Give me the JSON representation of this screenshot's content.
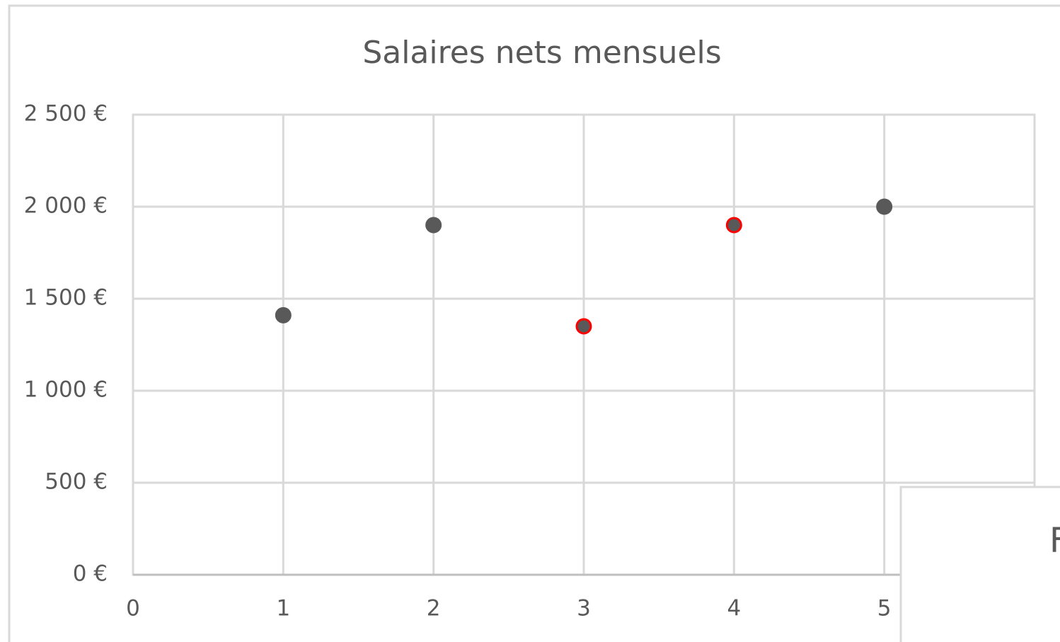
{
  "chart_data": {
    "type": "scatter",
    "title": "Salaires nets mensuels",
    "x": [
      1,
      2,
      3,
      4,
      5
    ],
    "series": [
      {
        "color": "#595959",
        "values": [
          1410,
          1900,
          1350,
          1900,
          2000
        ],
        "border_colors": [
          "#595959",
          "#595959",
          "#ff0000",
          "#ff0000",
          "#595959"
        ]
      }
    ],
    "xlim": [
      0,
      6
    ],
    "xticks": [
      0,
      1,
      2,
      3,
      4,
      5
    ],
    "ylim": [
      0,
      2500
    ],
    "yticks": [
      {
        "value": 0,
        "label": "0 €"
      },
      {
        "value": 500,
        "label": "500 €"
      },
      {
        "value": 1000,
        "label": "1 000 €"
      },
      {
        "value": 1500,
        "label": "1 500 €"
      },
      {
        "value": 2000,
        "label": "2 000 €"
      },
      {
        "value": 2500,
        "label": "2 500 €"
      }
    ],
    "grid": true
  },
  "overlay": {
    "text": "F"
  }
}
